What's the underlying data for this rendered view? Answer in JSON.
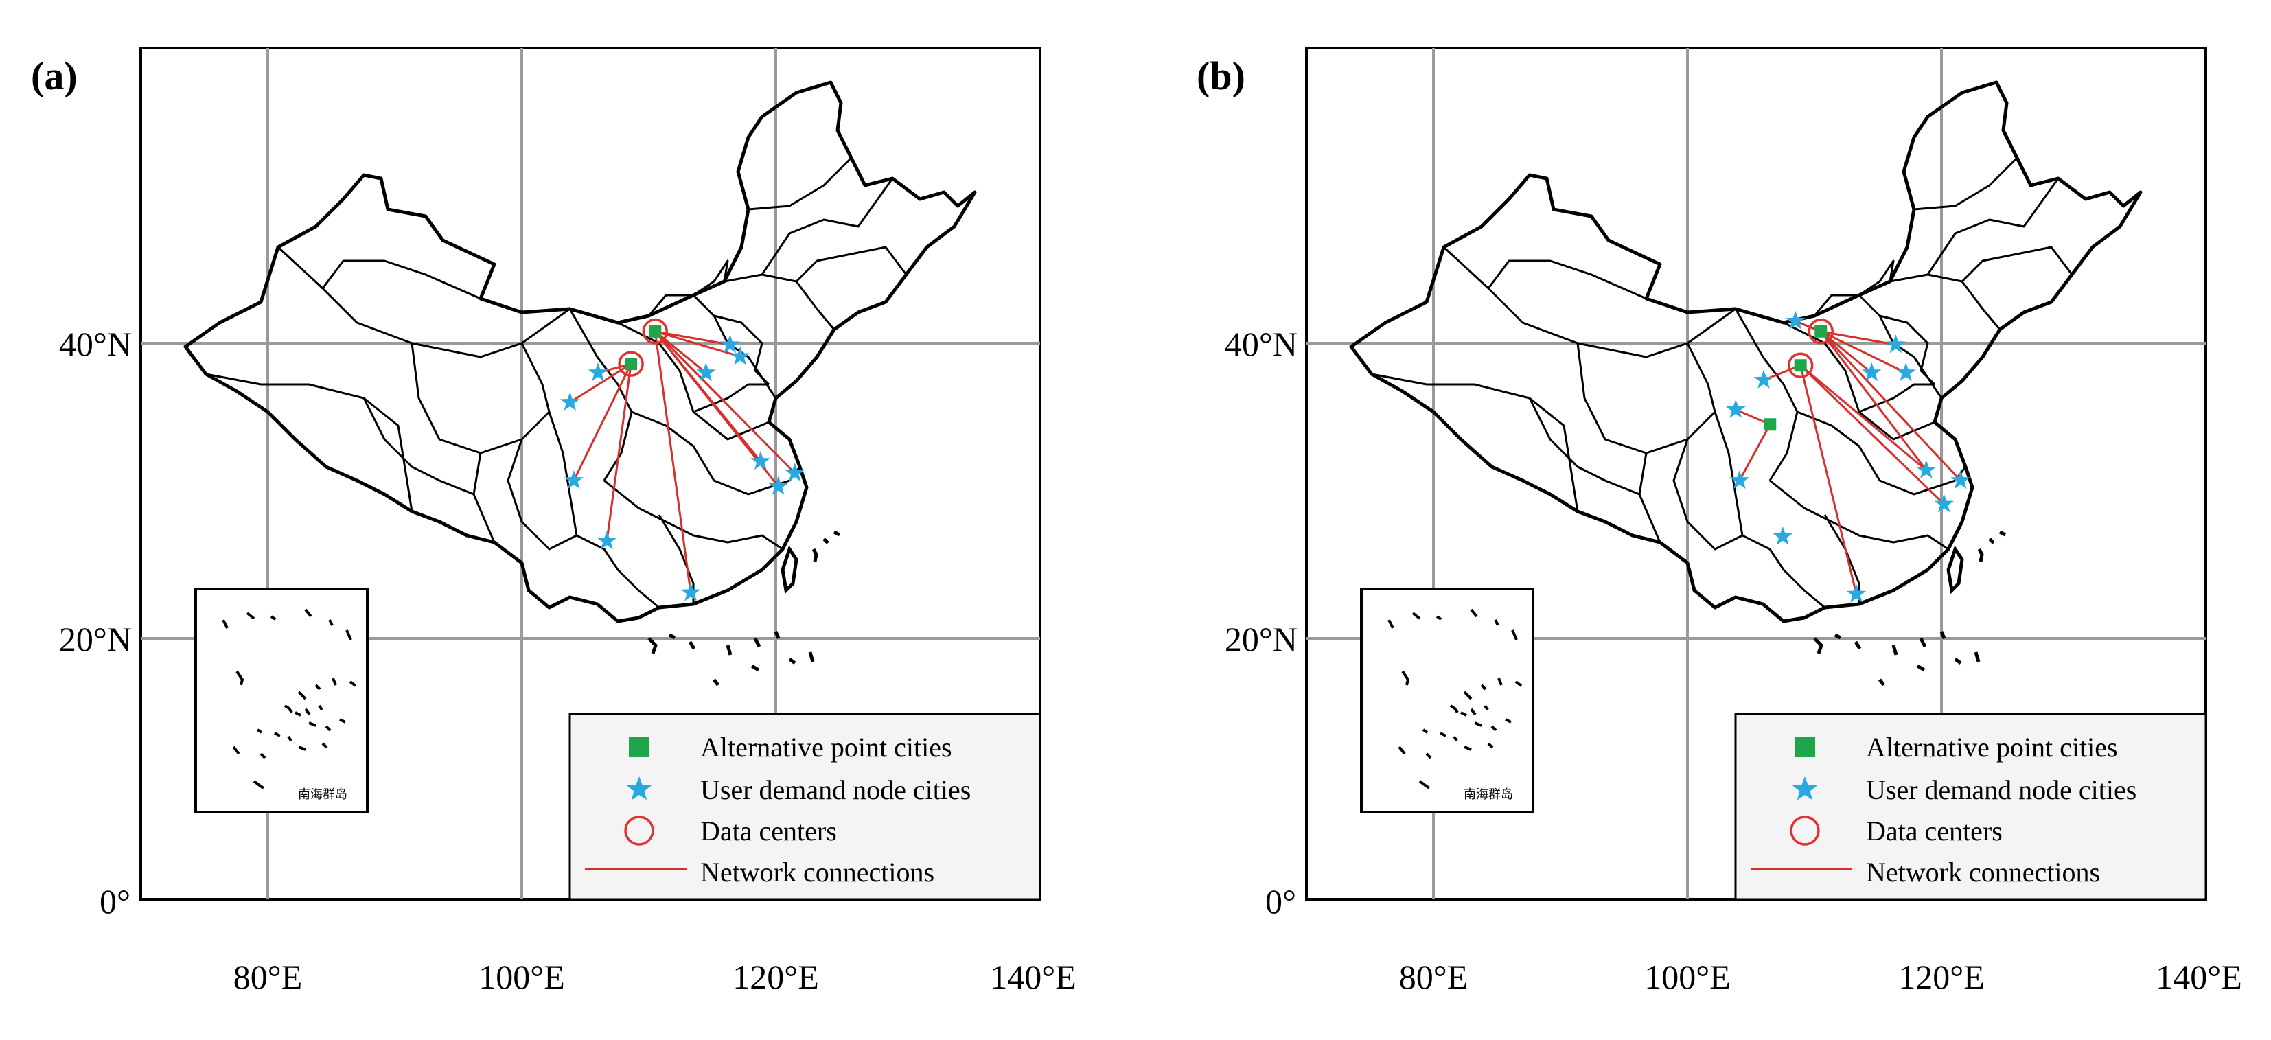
{
  "panels": [
    {
      "label": "(a)",
      "data_centers": [
        {
          "lon": 110.5,
          "lat": 40.8
        },
        {
          "lon": 108.6,
          "lat": 38.6
        }
      ],
      "alternative_point_cities": [
        {
          "lon": 110.5,
          "lat": 40.8
        },
        {
          "lon": 108.6,
          "lat": 38.6
        }
      ],
      "user_demand_node_cities": [
        {
          "lon": 116.4,
          "lat": 39.9
        },
        {
          "lon": 114.5,
          "lat": 38.0
        },
        {
          "lon": 117.2,
          "lat": 39.1
        },
        {
          "lon": 106.0,
          "lat": 38.0
        },
        {
          "lon": 103.8,
          "lat": 36.0
        },
        {
          "lon": 104.1,
          "lat": 30.7
        },
        {
          "lon": 106.7,
          "lat": 26.6
        },
        {
          "lon": 113.3,
          "lat": 23.1
        },
        {
          "lon": 120.2,
          "lat": 30.3
        },
        {
          "lon": 121.5,
          "lat": 31.2
        },
        {
          "lon": 118.8,
          "lat": 32.0
        }
      ],
      "network_connections": [
        [
          0,
          0
        ],
        [
          0,
          1
        ],
        [
          0,
          2
        ],
        [
          0,
          7
        ],
        [
          0,
          8
        ],
        [
          0,
          9
        ],
        [
          0,
          10
        ],
        [
          1,
          3
        ],
        [
          1,
          4
        ],
        [
          1,
          5
        ],
        [
          1,
          6
        ]
      ]
    },
    {
      "label": "(b)",
      "data_centers": [
        {
          "lon": 110.5,
          "lat": 40.8
        },
        {
          "lon": 108.9,
          "lat": 38.5
        }
      ],
      "alternative_point_cities": [
        {
          "lon": 110.5,
          "lat": 40.8
        },
        {
          "lon": 108.9,
          "lat": 38.5
        },
        {
          "lon": 106.5,
          "lat": 34.5
        }
      ],
      "user_demand_node_cities": [
        {
          "lon": 116.4,
          "lat": 39.9
        },
        {
          "lon": 114.5,
          "lat": 38.0
        },
        {
          "lon": 117.2,
          "lat": 38.0
        },
        {
          "lon": 106.0,
          "lat": 37.5
        },
        {
          "lon": 103.8,
          "lat": 35.5
        },
        {
          "lon": 104.1,
          "lat": 30.7
        },
        {
          "lon": 107.5,
          "lat": 26.9
        },
        {
          "lon": 113.3,
          "lat": 23.0
        },
        {
          "lon": 120.2,
          "lat": 29.1
        },
        {
          "lon": 121.5,
          "lat": 30.7
        },
        {
          "lon": 118.8,
          "lat": 31.4
        },
        {
          "lon": 108.5,
          "lat": 41.5
        }
      ],
      "network_connections": [
        [
          0,
          0
        ],
        [
          0,
          1
        ],
        [
          0,
          2
        ],
        [
          0,
          9
        ],
        [
          0,
          10
        ],
        [
          0,
          11
        ],
        [
          1,
          3
        ],
        [
          1,
          8
        ],
        [
          1,
          10
        ],
        [
          1,
          7
        ],
        [
          2,
          4
        ],
        [
          2,
          5
        ]
      ]
    }
  ],
  "axes": {
    "lat_labels": [
      {
        "value": 40,
        "text": "40°N"
      },
      {
        "value": 20,
        "text": "20°N"
      },
      {
        "value": 0,
        "text": "0°"
      }
    ],
    "lon_labels": [
      {
        "value": 80,
        "text": "80°E"
      },
      {
        "value": 100,
        "text": "100°E"
      },
      {
        "value": 120,
        "text": "120°E"
      },
      {
        "value": 140,
        "text": "140°E"
      }
    ],
    "lon_range": [
      70,
      140
    ],
    "lat_range": [
      0,
      58
    ]
  },
  "legend": {
    "items": [
      {
        "symbol": "square",
        "text": "Alternative point cities"
      },
      {
        "symbol": "star",
        "text": "User demand node cities"
      },
      {
        "symbol": "circle",
        "text": "Data centers"
      },
      {
        "symbol": "line",
        "text": "Network connections"
      }
    ]
  },
  "inset_caption": "南海群岛",
  "colors": {
    "alternative_point": "#1fa64a",
    "user_demand": "#29a9e1",
    "data_center": "#e0322e",
    "network": "#d6302c",
    "grid": "#9a9a9a",
    "border": "#000000",
    "legend_bg": "#f4f4f4"
  }
}
